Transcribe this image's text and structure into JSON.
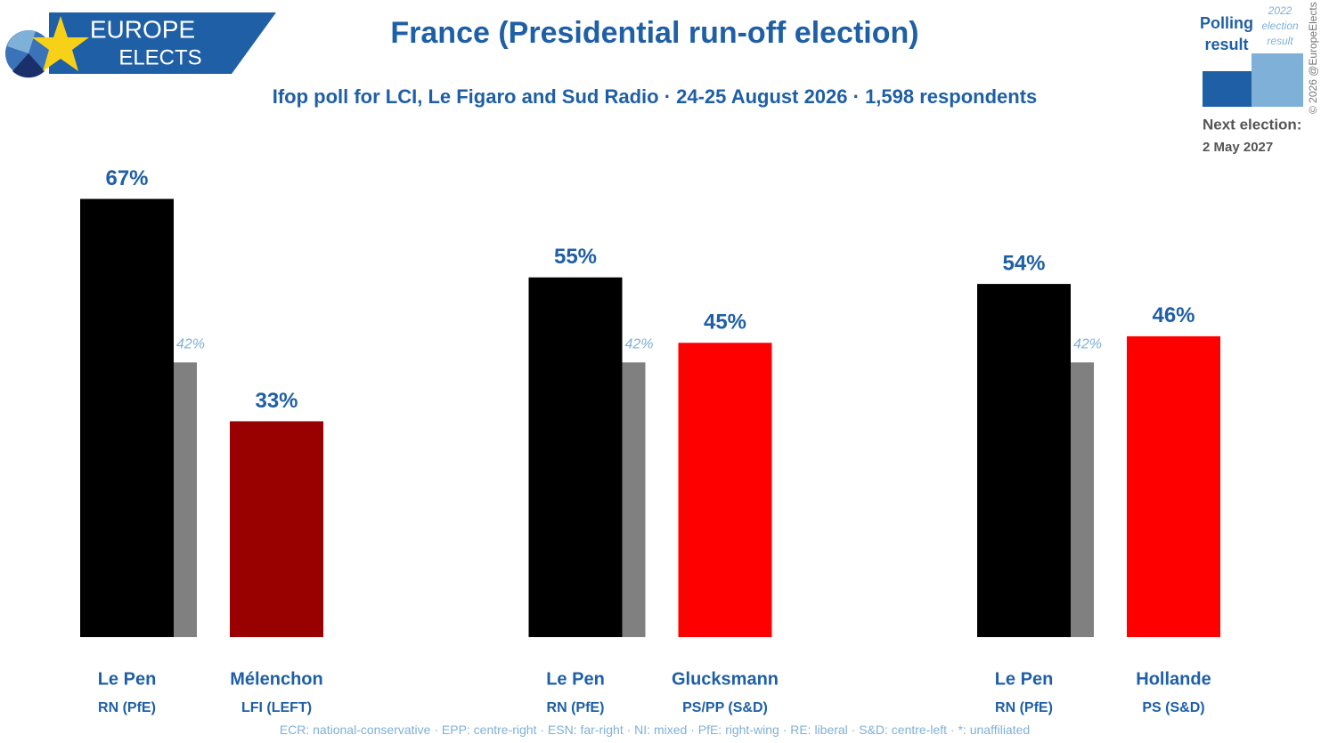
{
  "logo": {
    "line1": "EUROPE",
    "line2": "ELECTS"
  },
  "legend": {
    "current": "Polling result",
    "previous": "2022 election result"
  },
  "next_election": {
    "label": "Next election:",
    "date": "2 May 2027"
  },
  "copyright": "© 2026 @EuropeElects",
  "footnote": "ECR: national-conservative · EPP: centre-right · ESN: far-right · NI: mixed · PfE: right-wing · RE: liberal · S&D: centre-left · *: unaffiliated",
  "chart_data": {
    "type": "bar",
    "title": "France (Presidential run-off election)",
    "subtitle": "Ifop poll for LCI, Le Figaro and Sud Radio · 24-25 August 2026 · 1,598 respondents",
    "previous_color": "#808080",
    "groups": [
      {
        "categories": [
          "Le Pen",
          "Mélenchon"
        ],
        "parties": [
          "RN (PfE)",
          "LFI (LEFT)"
        ],
        "values": [
          67,
          33
        ],
        "value_labels": [
          "67%",
          "33%"
        ],
        "colors": [
          "#000000",
          "#990000"
        ],
        "previous": [
          42,
          null
        ],
        "previous_labels": [
          "42%",
          null
        ]
      },
      {
        "categories": [
          "Le Pen",
          "Glucksmann"
        ],
        "parties": [
          "RN (PfE)",
          "PS/PP (S&D)"
        ],
        "values": [
          55,
          45
        ],
        "value_labels": [
          "55%",
          "45%"
        ],
        "colors": [
          "#000000",
          "#ff0000"
        ],
        "previous": [
          42,
          null
        ],
        "previous_labels": [
          "42%",
          null
        ]
      },
      {
        "categories": [
          "Le Pen",
          "Hollande"
        ],
        "parties": [
          "RN (PfE)",
          "PS (S&D)"
        ],
        "values": [
          54,
          46
        ],
        "value_labels": [
          "54%",
          "46%"
        ],
        "colors": [
          "#000000",
          "#ff0000"
        ],
        "previous": [
          42,
          null
        ],
        "previous_labels": [
          "42%",
          null
        ]
      }
    ]
  }
}
